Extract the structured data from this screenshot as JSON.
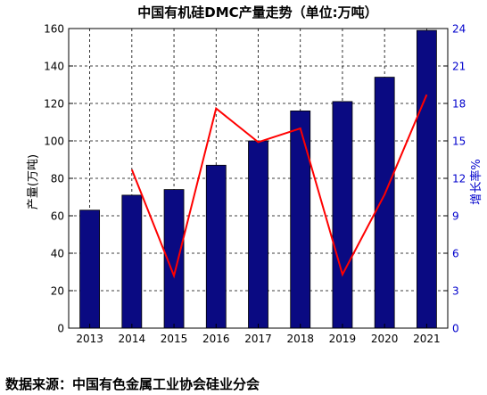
{
  "chart_data": {
    "type": "bar",
    "title": "中国有机硅DMC产量走势（单位:万吨）",
    "categories": [
      "2013",
      "2014",
      "2015",
      "2016",
      "2017",
      "2018",
      "2019",
      "2020",
      "2021"
    ],
    "series": [
      {
        "name": "产量",
        "type": "bar",
        "axis": "left",
        "values": [
          63,
          71,
          74,
          87,
          100,
          116,
          121,
          134,
          159
        ]
      },
      {
        "name": "增长率",
        "type": "line",
        "axis": "right",
        "values": [
          null,
          12.7,
          4.2,
          17.6,
          14.9,
          16.0,
          4.3,
          10.7,
          18.7
        ]
      }
    ],
    "ylabel": "产量(万吨)",
    "y2label": "增长率%",
    "ylim": [
      0,
      160
    ],
    "y2lim": [
      0,
      24
    ],
    "yticks": [
      "0",
      "20",
      "40",
      "60",
      "80",
      "100",
      "120",
      "140",
      "160"
    ],
    "y2ticks": [
      "0",
      "3",
      "6",
      "9",
      "12",
      "15",
      "18",
      "21",
      "24"
    ],
    "grid": true,
    "colors": {
      "bar": "#0a0a82",
      "line": "#ff0000",
      "right_axis": "#0000cc"
    }
  },
  "source": "数据来源：中国有色金属工业协会硅业分会"
}
